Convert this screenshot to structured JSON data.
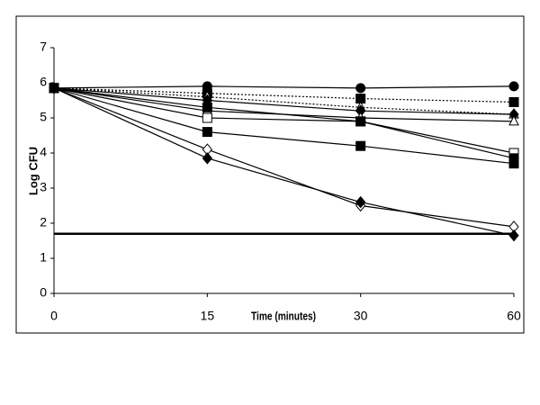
{
  "chart_data": {
    "type": "line",
    "x_label": "Time (minutes)",
    "y_label": "Log CFU",
    "categories": [
      "0",
      "15",
      "30",
      "60"
    ],
    "ylim": [
      0,
      7
    ],
    "yticks": [
      0,
      1,
      2,
      3,
      4,
      5,
      6,
      7
    ],
    "series": [
      {
        "color": "#000000",
        "dash": "solid",
        "marker": "circle",
        "filled": true,
        "values": [
          5.85,
          5.9,
          5.85,
          5.9
        ]
      },
      {
        "color": "#000000",
        "dash": "dotted",
        "marker": "square",
        "filled": true,
        "values": [
          5.85,
          5.7,
          5.55,
          5.45
        ]
      },
      {
        "color": "#000000",
        "dash": "dotted",
        "marker": "triangle",
        "filled": false,
        "values": [
          5.85,
          5.6,
          5.3,
          5.1
        ]
      },
      {
        "color": "#000000",
        "dash": "solid",
        "marker": "diamond",
        "filled": true,
        "values": [
          5.85,
          5.5,
          5.2,
          5.1
        ]
      },
      {
        "color": "#000000",
        "dash": "solid",
        "marker": "triangle",
        "filled": false,
        "values": [
          5.85,
          5.2,
          5.0,
          4.9
        ]
      },
      {
        "color": "#000000",
        "dash": "solid",
        "marker": "square",
        "filled": false,
        "values": [
          5.85,
          5.0,
          4.9,
          4.0
        ]
      },
      {
        "color": "#000000",
        "dash": "solid",
        "marker": "square",
        "filled": true,
        "values": [
          5.85,
          5.3,
          4.9,
          3.85
        ]
      },
      {
        "color": "#000000",
        "dash": "solid",
        "marker": "square",
        "filled": true,
        "values": [
          5.85,
          4.6,
          4.2,
          3.7
        ]
      },
      {
        "color": "#000000",
        "dash": "solid",
        "marker": "diamond",
        "filled": false,
        "values": [
          5.85,
          4.1,
          2.5,
          1.9
        ]
      },
      {
        "color": "#000000",
        "dash": "solid",
        "marker": "diamond",
        "filled": true,
        "values": [
          5.85,
          3.85,
          2.6,
          1.65
        ]
      },
      {
        "color": "#000000",
        "dash": "thick",
        "marker": "none",
        "filled": false,
        "values": [
          1.7,
          1.7,
          1.7,
          1.7
        ]
      }
    ]
  }
}
